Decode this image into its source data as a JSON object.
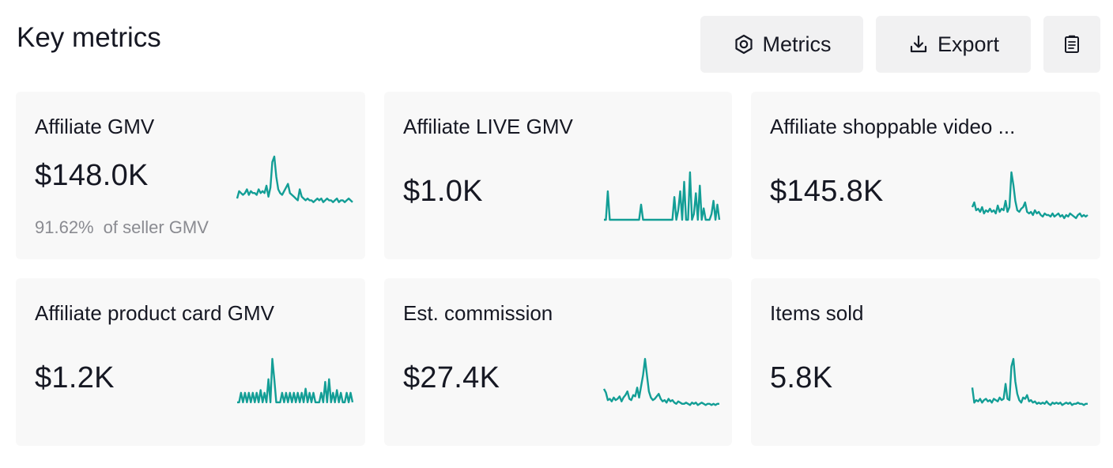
{
  "page": {
    "title": "Key metrics"
  },
  "toolbar": {
    "metrics_label": "Metrics",
    "export_label": "Export"
  },
  "colors": {
    "sparkline": "#139e96",
    "card_background": "#f8f8f8",
    "button_background": "#f1f1f2"
  },
  "icons": {
    "metrics": "target-icon",
    "export": "download-icon",
    "report": "clipboard-icon"
  },
  "cards": [
    {
      "label": "Affiliate GMV",
      "value": "$148.0K",
      "sub_percent": "91.62%",
      "sub_text": "of seller GMV",
      "trend": [
        3,
        7,
        6,
        5,
        6,
        8,
        5,
        7,
        6,
        6,
        5,
        8,
        6,
        7,
        6,
        10,
        4,
        9,
        23,
        26,
        15,
        8,
        6,
        5,
        7,
        9,
        11,
        6,
        5,
        4,
        3,
        2,
        8,
        4,
        3,
        2,
        3,
        2,
        2,
        1,
        2,
        3,
        2,
        3,
        1,
        2,
        3,
        2,
        2,
        1,
        2,
        3,
        1,
        2,
        2,
        1,
        2,
        3,
        2,
        1
      ]
    },
    {
      "label": "Affiliate LIVE GMV",
      "value": "$1.0K",
      "trend": [
        0,
        0,
        15,
        0,
        0,
        0,
        0,
        0,
        0,
        0,
        0,
        0,
        0,
        0,
        0,
        0,
        0,
        0,
        0,
        8,
        0,
        0,
        0,
        0,
        0,
        0,
        0,
        0,
        0,
        0,
        0,
        0,
        0,
        0,
        0,
        0,
        12,
        0,
        5,
        15,
        0,
        20,
        0,
        0,
        25,
        0,
        3,
        14,
        0,
        18,
        0,
        6,
        0,
        0,
        0,
        3,
        10,
        0,
        8,
        0
      ]
    },
    {
      "label": "Affiliate shoppable video ...",
      "value": "$145.8K",
      "trend": [
        8,
        11,
        6,
        7,
        5,
        8,
        4,
        6,
        5,
        7,
        5,
        6,
        4,
        9,
        5,
        7,
        6,
        12,
        5,
        8,
        30,
        22,
        12,
        6,
        5,
        7,
        8,
        11,
        5,
        4,
        5,
        3,
        6,
        4,
        5,
        3,
        2,
        4,
        3,
        3,
        2,
        4,
        2,
        3,
        4,
        2,
        3,
        1,
        3,
        2,
        4,
        3,
        2,
        1,
        3,
        4,
        2,
        3,
        2,
        3
      ]
    },
    {
      "label": "Affiliate product card GMV",
      "value": "$1.2K",
      "trend": [
        3,
        3,
        10,
        3,
        10,
        3,
        10,
        3,
        10,
        3,
        10,
        3,
        12,
        3,
        10,
        3,
        20,
        3,
        35,
        20,
        3,
        3,
        3,
        10,
        3,
        10,
        3,
        10,
        3,
        10,
        3,
        10,
        3,
        10,
        3,
        13,
        3,
        10,
        3,
        10,
        3,
        3,
        3,
        10,
        3,
        18,
        3,
        20,
        3,
        10,
        3,
        12,
        3,
        10,
        3,
        3,
        10,
        3,
        10,
        3
      ]
    },
    {
      "label": "Est. commission",
      "value": "$27.4K",
      "trend": [
        14,
        11,
        5,
        6,
        4,
        7,
        5,
        6,
        8,
        4,
        7,
        9,
        12,
        6,
        5,
        9,
        8,
        15,
        7,
        16,
        25,
        38,
        25,
        12,
        7,
        5,
        6,
        8,
        10,
        6,
        4,
        5,
        3,
        6,
        4,
        5,
        3,
        2,
        4,
        3,
        2,
        2,
        3,
        2,
        1,
        3,
        2,
        3,
        1,
        2,
        3,
        2,
        1,
        2,
        2,
        1,
        2,
        1,
        2,
        2
      ]
    },
    {
      "label": "Items sold",
      "value": "5.8K",
      "trend": [
        15,
        3,
        5,
        4,
        6,
        3,
        5,
        6,
        4,
        5,
        3,
        6,
        5,
        4,
        7,
        5,
        6,
        18,
        6,
        5,
        32,
        38,
        20,
        10,
        5,
        3,
        7,
        6,
        9,
        4,
        5,
        3,
        4,
        2,
        3,
        2,
        3,
        2,
        4,
        2,
        1,
        3,
        2,
        3,
        2,
        3,
        1,
        2,
        3,
        2,
        3,
        1,
        2,
        2,
        3,
        2,
        2,
        1,
        2,
        2
      ]
    }
  ]
}
